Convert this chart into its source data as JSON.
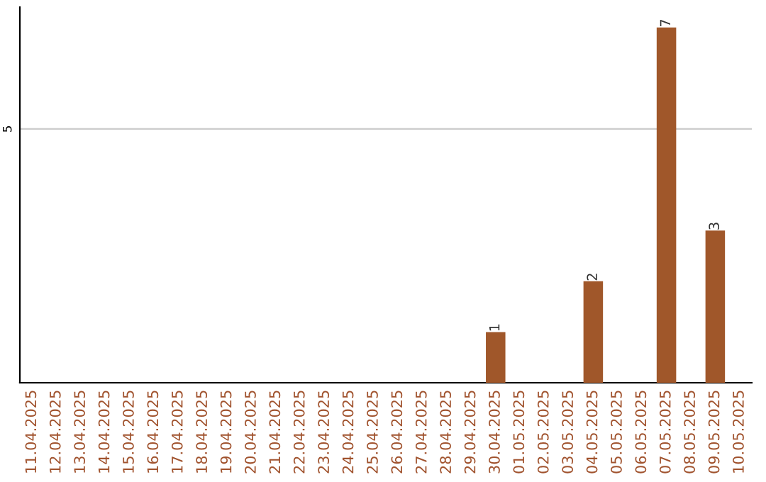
{
  "chart_data": {
    "type": "bar",
    "categories": [
      "11.04.2025",
      "12.04.2025",
      "13.04.2025",
      "14.04.2025",
      "15.04.2025",
      "16.04.2025",
      "17.04.2025",
      "18.04.2025",
      "19.04.2025",
      "20.04.2025",
      "21.04.2025",
      "22.04.2025",
      "23.04.2025",
      "24.04.2025",
      "25.04.2025",
      "26.04.2025",
      "27.04.2025",
      "28.04.2025",
      "29.04.2025",
      "30.04.2025",
      "01.05.2025",
      "02.05.2025",
      "03.05.2025",
      "04.05.2025",
      "05.05.2025",
      "06.05.2025",
      "07.05.2025",
      "08.05.2025",
      "09.05.2025",
      "10.05.2025"
    ],
    "values": [
      null,
      null,
      null,
      null,
      null,
      null,
      null,
      null,
      null,
      null,
      null,
      null,
      null,
      null,
      null,
      null,
      null,
      null,
      null,
      1,
      null,
      null,
      null,
      2,
      null,
      null,
      7,
      null,
      3,
      null
    ],
    "data_labels": true,
    "color": "#a0572a",
    "ylim": [
      0,
      7.4
    ],
    "ref_lines": [
      {
        "axis": "y",
        "value": 5,
        "label": "5",
        "color": "#cccccc"
      }
    ]
  }
}
